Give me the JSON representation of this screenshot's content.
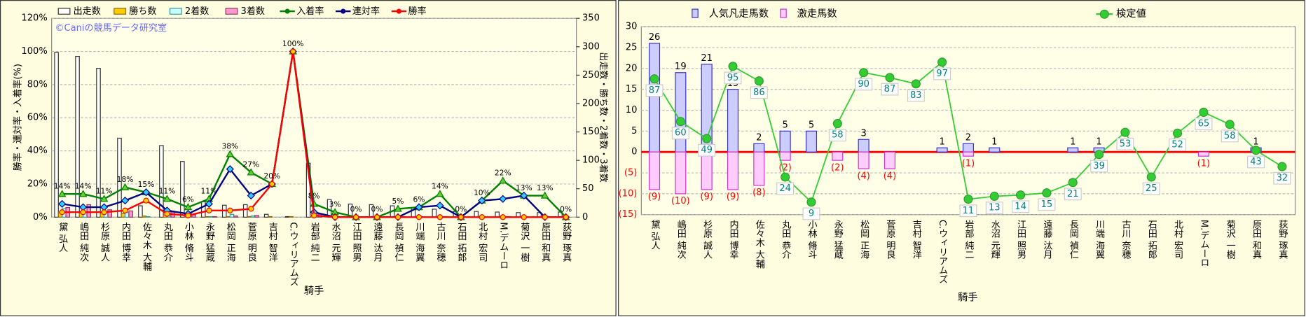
{
  "chart_data": [
    {
      "type": "combo",
      "annotation": "©Caniの競馬データ研究室",
      "y_label": "勝率・連対率・入着率(%)",
      "y2_label": "出走数・勝ち数・2着数・3着数",
      "x_label": "騎手",
      "categories": [
        "黛 弘人",
        "嶋田 純次",
        "杉原 誠人",
        "内田 博幸",
        "佐々木 大輔",
        "丸田 恭介",
        "小林 脩斗",
        "永野 猛蔵",
        "松岡 正海",
        "菅原 明良",
        "吉村 智洋",
        "C.ウィリアムズ",
        "岩部 純二",
        "水沼 元輝",
        "江田 照男",
        "遠藤 汰月",
        "長岡 禎仁",
        "川端 海翼",
        "古川 奈穂",
        "石田 拓郎",
        "北村 宏司",
        "M.デムーロ",
        "菊沢 一樹",
        "原田 和真",
        "荻野 琢真"
      ],
      "ylim": [
        0,
        120
      ],
      "yticks": [
        {
          "value": 0,
          "label": "0%"
        },
        {
          "value": 20,
          "label": "20%"
        },
        {
          "value": 40,
          "label": "40%"
        },
        {
          "value": 60,
          "label": "60%"
        },
        {
          "value": 80,
          "label": "80%"
        },
        {
          "value": 100,
          "label": "100%"
        },
        {
          "value": 120,
          "label": "120%"
        }
      ],
      "y2lim": [
        0,
        350
      ],
      "y2ticks": [
        0,
        50,
        100,
        150,
        200,
        250,
        300,
        350
      ],
      "grid": true,
      "series": [
        {
          "name": "出走数",
          "type": "bar",
          "axis": "y2",
          "color": "#ffffff",
          "stroke": "#333333",
          "values": [
            290,
            283,
            262,
            139,
            20,
            126,
            98,
            27,
            21,
            22,
            5,
            1,
            95,
            31,
            23,
            22,
            20,
            16,
            14,
            10,
            10,
            9,
            8,
            8,
            9
          ]
        },
        {
          "name": "勝ち数",
          "type": "bar",
          "axis": "y2",
          "color": "#ffcc00",
          "stroke": "#996600",
          "values": [
            9,
            8,
            8,
            6,
            2,
            3,
            1,
            1,
            1,
            1,
            1,
            1,
            1,
            0,
            0,
            0,
            0,
            0,
            0,
            0,
            0,
            0,
            0,
            0,
            0
          ]
        },
        {
          "name": "2着数",
          "type": "bar",
          "axis": "y2",
          "color": "#ccffff",
          "stroke": "#339999",
          "values": [
            15,
            9,
            8,
            8,
            1,
            2,
            1,
            1,
            5,
            2,
            0,
            0,
            2,
            0,
            0,
            0,
            0,
            1,
            1,
            0,
            1,
            1,
            1,
            1,
            0
          ]
        },
        {
          "name": "3着数",
          "type": "bar",
          "axis": "y2",
          "color": "#ff99cc",
          "stroke": "#993366",
          "values": [
            17,
            22,
            13,
            11,
            0,
            9,
            4,
            1,
            2,
            3,
            0,
            0,
            5,
            1,
            0,
            0,
            1,
            0,
            1,
            0,
            0,
            1,
            0,
            0,
            0
          ]
        },
        {
          "name": "入着率",
          "type": "line",
          "axis": "y",
          "color": "#008000",
          "marker": "triangle",
          "values": [
            14,
            14,
            11,
            18,
            15,
            11,
            6,
            11,
            38,
            27,
            20,
            100,
            8,
            3,
            0,
            0,
            5,
            6,
            14,
            0,
            10,
            22,
            13,
            13,
            0
          ],
          "value_labels": [
            "14%",
            "14%",
            "11%",
            "18%",
            "15%",
            "11%",
            "6%",
            "11%",
            "38%",
            "27%",
            "20%",
            "100%",
            "8%",
            "3%",
            "0%",
            "0%",
            "5%",
            "6%",
            "14%",
            "0%",
            "10%",
            "22%",
            "13%",
            "13%",
            "0%"
          ]
        },
        {
          "name": "連対率",
          "type": "line",
          "axis": "y",
          "color": "#000080",
          "marker": "diamond",
          "values": [
            8,
            6,
            6,
            10,
            15,
            4,
            2,
            8,
            29,
            13,
            20,
            100,
            3,
            0,
            0,
            0,
            0,
            6,
            7,
            0,
            10,
            11,
            13,
            0,
            0
          ]
        },
        {
          "name": "勝率",
          "type": "line",
          "axis": "y",
          "color": "#ff0000",
          "marker": "circle",
          "values": [
            3,
            3,
            3,
            4,
            10,
            2,
            1,
            4,
            4,
            5,
            20,
            100,
            1,
            0,
            0,
            0,
            0,
            0,
            0,
            0,
            0,
            0,
            0,
            0,
            0
          ]
        }
      ]
    },
    {
      "type": "combo",
      "x_label": "騎手",
      "categories": [
        "黛 弘人",
        "嶋田 純次",
        "杉原 誠人",
        "内田 博幸",
        "佐々木 大輔",
        "丸田 恭介",
        "小林 脩斗",
        "永野 猛蔵",
        "松岡 正海",
        "菅原 明良",
        "吉村 智洋",
        "C.ウィリアムズ",
        "岩部 純二",
        "水沼 元輝",
        "江田 照男",
        "遠藤 汰月",
        "長岡 禎仁",
        "川端 海翼",
        "古川 奈穂",
        "石田 拓郎",
        "北村 宏司",
        "M.デムーロ",
        "菊沢 一樹",
        "原田 和真",
        "荻野 琢真"
      ],
      "ylim": [
        -15,
        30
      ],
      "yticks": [
        {
          "value": -15,
          "label": "(15)"
        },
        {
          "value": -10,
          "label": "(10)"
        },
        {
          "value": -5,
          "label": "(5)"
        },
        0,
        5,
        10,
        15,
        20,
        25,
        30
      ],
      "grid": true,
      "zero_line_color": "#ff0000",
      "bar_layout": "overlap",
      "series": [
        {
          "name": "人気凡走馬数",
          "type": "bar",
          "color": "#ccccff",
          "stroke": "#3333cc",
          "show_values": true,
          "values": [
            26,
            19,
            21,
            15,
            2,
            5,
            5,
            0,
            3,
            0,
            0,
            1,
            2,
            1,
            0,
            0,
            1,
            1,
            0,
            0,
            0,
            0,
            0,
            1,
            0
          ]
        },
        {
          "name": "激走馬数",
          "type": "bar",
          "color": "#ffccff",
          "stroke": "#cc33cc",
          "label_color": "#ff0000",
          "values": [
            -9,
            -10,
            -9,
            -9,
            -8,
            -2,
            0,
            -2,
            -4,
            -4,
            0,
            0,
            -1,
            0,
            0,
            0,
            0,
            0,
            0,
            0,
            0,
            -1,
            0,
            0,
            0
          ],
          "value_labels": [
            "(9)",
            "(10)",
            "(9)",
            "(9)",
            "(8)",
            "(2)",
            null,
            "(2)",
            "(4)",
            "(4)",
            null,
            null,
            "(1)",
            null,
            null,
            null,
            null,
            null,
            null,
            null,
            null,
            "(1)",
            null,
            null,
            null
          ]
        },
        {
          "name": "検定値",
          "type": "line",
          "color": "#33cc33",
          "marker": "circle",
          "label_color": "#008080",
          "label_box": true,
          "values": [
            17.5,
            7.3,
            3.2,
            20.5,
            17,
            -6,
            -12,
            6.8,
            19,
            17.8,
            16.3,
            21.5,
            -11.3,
            -10.6,
            -10.3,
            -9.8,
            -7.3,
            -0.6,
            4.7,
            -6,
            4.5,
            9.5,
            6.6,
            0.4,
            -3.5
          ],
          "value_labels": [
            "87",
            "60",
            "49",
            "95",
            "86",
            "24",
            "9",
            "58",
            "90",
            "87",
            "83",
            "97",
            "11",
            "13",
            "14",
            "15",
            "21",
            "39",
            "53",
            "25",
            "52",
            "65",
            "58",
            "43",
            "32"
          ]
        }
      ]
    }
  ]
}
